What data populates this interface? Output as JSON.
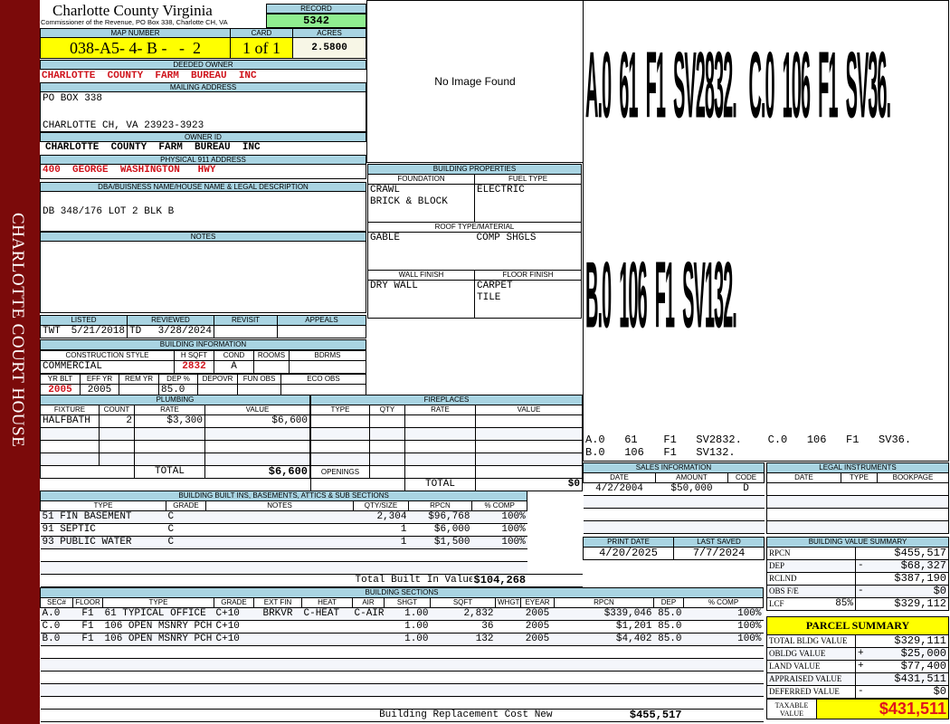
{
  "sidebar": {
    "text": "CHARLOTTE COURT HOUSE"
  },
  "header": {
    "title": "Charlotte County Virginia",
    "subtitle": "Commissioner of the Revenue, PO Box 338, Charlotte CH, VA",
    "record_label": "RECORD",
    "record": "5342"
  },
  "parcel": {
    "map_label": "MAP NUMBER",
    "map": "038-A5- 4- B -   -  2",
    "card_label": "CARD",
    "card": "1 of 1",
    "acres_label": "ACRES",
    "acres": "2.5800"
  },
  "owner": {
    "deeded_label": "DEEDED OWNER",
    "deeded": "CHARLOTTE  COUNTY  FARM  BUREAU  INC",
    "mailing_label": "MAILING ADDRESS",
    "mail1": "PO BOX 338",
    "mail2": "CHARLOTTE CH, VA 23923-3923",
    "id_label": "OWNER ID",
    "id": "CHARLOTTE  COUNTY  FARM  BUREAU  INC",
    "addr_label": "PHYSICAL 911 ADDRESS",
    "addr": "400  GEORGE  WASHINGTON   HWY",
    "dba_label": "DBA/BUISNESS NAME/HOUSE NAME & LEGAL DESCRIPTION",
    "dba": "DB 348/176 LOT 2 BLK B",
    "notes_label": "NOTES"
  },
  "image": {
    "text": "No Image Found"
  },
  "props": {
    "title": "BUILDING PROPERTIES",
    "foundation_label": "FOUNDATION",
    "foundation": [
      "CRAWL",
      "BRICK & BLOCK"
    ],
    "fuel_label": "FUEL TYPE",
    "fuel": "ELECTRIC",
    "roof_label": "ROOF TYPE/MATERIAL",
    "roof_type": "GABLE",
    "roof_material": "COMP SHGLS",
    "wall_label": "WALL FINISH",
    "wall": "DRY WALL",
    "floor_label": "FLOOR FINISH",
    "floor": [
      "CARPET",
      "TILE"
    ]
  },
  "review": {
    "headers": [
      "LISTED",
      "REVIEWED",
      "REVISIT",
      "APPEALS"
    ],
    "listed_by": "TWT",
    "listed": "5/21/2018",
    "reviewed_by": "TD",
    "reviewed": "3/28/2024"
  },
  "building_info": {
    "title": "BUILDING INFORMATION",
    "h1": [
      "CONSTRUCTION STYLE",
      "H SQFT",
      "COND",
      "ROOMS",
      "BDRMS"
    ],
    "style": "COMMERCIAL",
    "hsqft": "2832",
    "cond": "A",
    "h2": [
      "YR BLT",
      "EFF YR",
      "REM YR",
      "DEP %",
      "DEPOVR",
      "FUN OBS",
      "ECO OBS"
    ],
    "yr_blt": "2005",
    "eff_yr": "2005",
    "dep": "85.0"
  },
  "plumbing": {
    "title": "PLUMBING",
    "headers": [
      "FIXTURE",
      "COUNT",
      "RATE",
      "VALUE"
    ],
    "rows": [
      [
        "HALFBATH",
        "2",
        "$3,300",
        "$6,600"
      ]
    ],
    "total_label": "TOTAL",
    "total": "$6,600"
  },
  "fireplaces": {
    "title": "FIREPLACES",
    "headers": [
      "TYPE",
      "QTY",
      "RATE",
      "VALUE"
    ],
    "openings_label": "OPENINGS",
    "total_label": "TOTAL",
    "total": "$0"
  },
  "builtins": {
    "title": "BUILDING BUILT INS, BASEMENTS, ATTICS & SUB SECTIONS",
    "headers": [
      "TYPE",
      "GRADE",
      "NOTES",
      "QTY/SIZE",
      "RPCN",
      "% COMP"
    ],
    "rows": [
      [
        "51 FIN BASEMENT",
        "C",
        "",
        "2,304",
        "$96,768",
        "100%"
      ],
      [
        "91 SEPTIC",
        "C",
        "",
        "1",
        "$6,000",
        "100%"
      ],
      [
        "93 PUBLIC WATER",
        "C",
        "",
        "1",
        "$1,500",
        "100%"
      ]
    ],
    "total_label": "Total Built In Value",
    "total": "$104,268"
  },
  "sections": {
    "title": "BUILDING SECTIONS",
    "headers": [
      "SEC#",
      "FLOOR",
      "TYPE",
      "GRADE",
      "EXT FIN",
      "HEAT",
      "AIR",
      "SHGT",
      "SQFT",
      "WHGT",
      "EYEAR",
      "RPCN",
      "DEP",
      "% COMP"
    ],
    "rows": [
      [
        "A.0",
        "F1",
        "61 TYPICAL OFFICE",
        "C+10",
        "BRKVR",
        "C-HEAT",
        "C-AIR",
        "1.00",
        "2,832",
        "",
        "2005",
        "$339,046",
        "85.0",
        "100%"
      ],
      [
        "C.0",
        "F1",
        "106 OPEN MSNRY PCH",
        "C+10",
        "",
        "",
        "",
        "1.00",
        "36",
        "",
        "2005",
        "$1,201",
        "85.0",
        "100%"
      ],
      [
        "B.0",
        "F1",
        "106 OPEN MSNRY PCH",
        "C+10",
        "",
        "",
        "",
        "1.00",
        "132",
        "",
        "2005",
        "$4,402",
        "85.0",
        "100%"
      ]
    ],
    "total_label": "Building Replacement Cost New",
    "total": "$455,517"
  },
  "sketch": {
    "big1": "A.0  61  F1  SV2832.   C.0  106  F1  SV36.",
    "big2": "B.0  106  F1  SV132.",
    "line1": "A.0   61    F1   SV2832.    C.0   106   F1   SV36.",
    "line2": "B.0   106   F1   SV132."
  },
  "sales": {
    "title": "SALES INFORMATION",
    "headers": [
      "DATE",
      "AMOUNT",
      "CODE"
    ],
    "rows": [
      [
        "4/2/2004",
        "$50,000",
        "D"
      ]
    ]
  },
  "legal": {
    "title": "LEGAL INSTRUMENTS",
    "headers": [
      "DATE",
      "TYPE",
      "BOOKPAGE"
    ]
  },
  "dates": {
    "print_label": "PRINT DATE",
    "print": "4/20/2025",
    "saved_label": "LAST SAVED",
    "saved": "7/7/2024"
  },
  "value_summary": {
    "title": "BUILDING VALUE SUMMARY",
    "rows": [
      [
        "RPCN",
        "",
        "",
        "$455,517"
      ],
      [
        "DEP",
        "",
        "-",
        "$68,327"
      ],
      [
        "RCLND",
        "",
        "",
        "$387,190"
      ],
      [
        "OBS F/E",
        "",
        "-",
        "$0"
      ],
      [
        "LCF",
        "85%",
        "",
        "$329,112"
      ]
    ]
  },
  "parcel_summary": {
    "title": "PARCEL  SUMMARY",
    "rows": [
      [
        "TOTAL BLDG VALUE",
        "",
        "$329,111"
      ],
      [
        "OBLDG VALUE",
        "+",
        "$25,000"
      ],
      [
        "LAND VALUE",
        "+",
        "$77,400"
      ],
      [
        "APPRAISED VALUE",
        "",
        "$431,511"
      ],
      [
        "DEFERRED VALUE",
        "-",
        "$0"
      ]
    ],
    "taxable_label": "TAXABLE VALUE",
    "taxable": "$431,511"
  },
  "colors": {
    "sidebar": "#7b0a0a",
    "header_band": "#a9d4e2",
    "highlight": "#ffff00",
    "record": "#90ee90",
    "emphasis": "#d0141c"
  }
}
